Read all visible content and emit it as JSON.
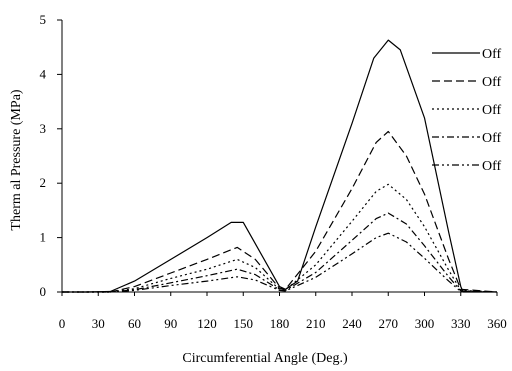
{
  "chart_data": {
    "type": "line",
    "title": "",
    "xlabel": "Circumferential Angle (Deg.)",
    "ylabel": "Therm al Pressure (MPa)",
    "xlim": [
      0,
      360
    ],
    "ylim": [
      0,
      5
    ],
    "xticks": [
      0,
      30,
      60,
      90,
      120,
      150,
      180,
      210,
      240,
      270,
      300,
      330,
      360
    ],
    "yticks": [
      0,
      1,
      2,
      3,
      4,
      5
    ],
    "grid": false,
    "legend_position": "right",
    "series": [
      {
        "name": "Off",
        "dash": "",
        "points": [
          [
            0,
            0
          ],
          [
            20,
            0
          ],
          [
            40,
            0.01
          ],
          [
            60,
            0.2
          ],
          [
            90,
            0.6
          ],
          [
            120,
            1
          ],
          [
            140,
            1.28
          ],
          [
            150,
            1.28
          ],
          [
            180,
            0.1
          ],
          [
            185,
            0.05
          ],
          [
            195,
            0.2
          ],
          [
            210,
            1.2
          ],
          [
            240,
            3.1
          ],
          [
            258,
            4.3
          ],
          [
            270,
            4.63
          ],
          [
            280,
            4.45
          ],
          [
            300,
            3.2
          ],
          [
            320,
            1.1
          ],
          [
            330,
            0.1
          ],
          [
            332,
            0
          ],
          [
            360,
            0
          ]
        ]
      },
      {
        "name": "Off",
        "dash": "8,4",
        "points": [
          [
            0,
            0
          ],
          [
            40,
            0
          ],
          [
            60,
            0.1
          ],
          [
            90,
            0.35
          ],
          [
            120,
            0.6
          ],
          [
            145,
            0.82
          ],
          [
            160,
            0.6
          ],
          [
            180,
            0.07
          ],
          [
            185,
            0.05
          ],
          [
            210,
            0.75
          ],
          [
            240,
            1.9
          ],
          [
            260,
            2.75
          ],
          [
            270,
            2.95
          ],
          [
            285,
            2.5
          ],
          [
            300,
            1.8
          ],
          [
            320,
            0.6
          ],
          [
            330,
            0.05
          ],
          [
            360,
            0
          ]
        ]
      },
      {
        "name": "Off",
        "dash": "2,3",
        "points": [
          [
            0,
            0
          ],
          [
            40,
            0
          ],
          [
            60,
            0.06
          ],
          [
            90,
            0.25
          ],
          [
            120,
            0.42
          ],
          [
            145,
            0.6
          ],
          [
            160,
            0.45
          ],
          [
            180,
            0.05
          ],
          [
            185,
            0.04
          ],
          [
            210,
            0.5
          ],
          [
            240,
            1.3
          ],
          [
            260,
            1.85
          ],
          [
            270,
            1.98
          ],
          [
            285,
            1.7
          ],
          [
            300,
            1.2
          ],
          [
            320,
            0.4
          ],
          [
            330,
            0.03
          ],
          [
            360,
            0
          ]
        ]
      },
      {
        "name": "Off",
        "dash": "7,3,2,3",
        "points": [
          [
            0,
            0
          ],
          [
            40,
            0
          ],
          [
            60,
            0.04
          ],
          [
            90,
            0.17
          ],
          [
            120,
            0.3
          ],
          [
            145,
            0.42
          ],
          [
            160,
            0.32
          ],
          [
            180,
            0.04
          ],
          [
            185,
            0.03
          ],
          [
            210,
            0.36
          ],
          [
            240,
            0.95
          ],
          [
            260,
            1.35
          ],
          [
            270,
            1.45
          ],
          [
            285,
            1.25
          ],
          [
            300,
            0.85
          ],
          [
            320,
            0.28
          ],
          [
            330,
            0.02
          ],
          [
            360,
            0
          ]
        ]
      },
      {
        "name": "Off",
        "dash": "7,3,2,3,2,3",
        "points": [
          [
            0,
            0
          ],
          [
            40,
            0
          ],
          [
            60,
            0.03
          ],
          [
            90,
            0.12
          ],
          [
            120,
            0.2
          ],
          [
            145,
            0.28
          ],
          [
            160,
            0.22
          ],
          [
            180,
            0.03
          ],
          [
            185,
            0.02
          ],
          [
            210,
            0.27
          ],
          [
            240,
            0.7
          ],
          [
            260,
            1.0
          ],
          [
            270,
            1.08
          ],
          [
            285,
            0.92
          ],
          [
            300,
            0.62
          ],
          [
            320,
            0.2
          ],
          [
            330,
            0.01
          ],
          [
            360,
            0
          ]
        ]
      }
    ]
  }
}
